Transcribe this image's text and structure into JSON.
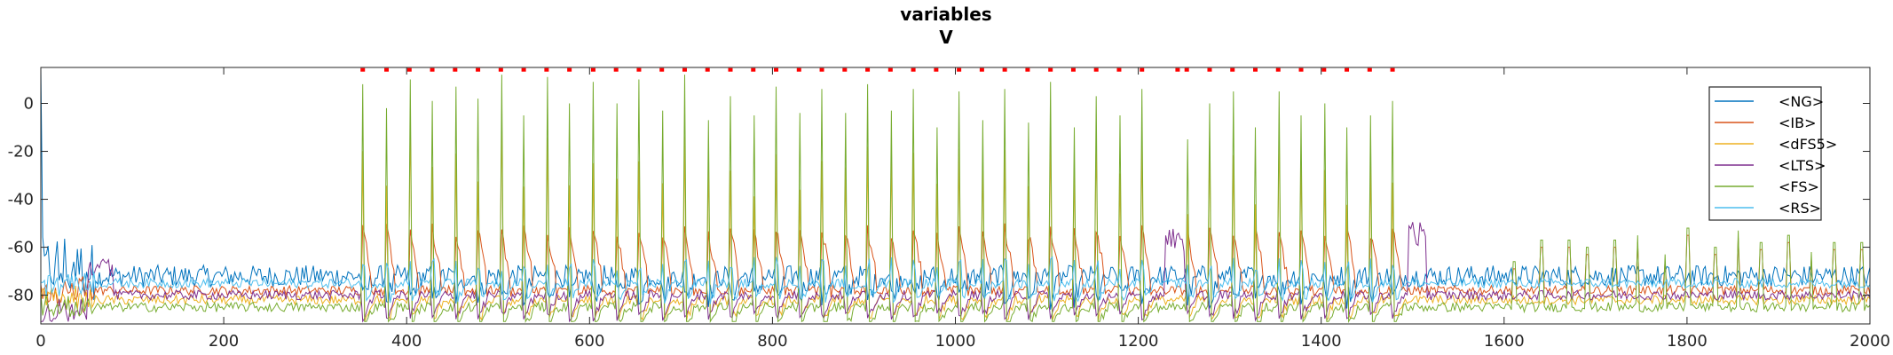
{
  "chart_data": {
    "type": "line",
    "title": "variables",
    "subtitle": "V",
    "xlim": [
      0,
      2000
    ],
    "ylim": [
      -92,
      15
    ],
    "x_ticks": [
      "0",
      "200",
      "400",
      "600",
      "800",
      "1000",
      "1200",
      "1400",
      "1600",
      "1800",
      "2000"
    ],
    "y_ticks": [
      "0",
      "-20",
      "-40",
      "-60",
      "-80"
    ],
    "legend_position": "top-right",
    "grid": false,
    "series": [
      {
        "name": "<NG>",
        "color": "#0072BD",
        "baseline": -72,
        "values_summary": "noisy near -72 mV, large early spike to ~15 at t≈0"
      },
      {
        "name": "<IB>",
        "color": "#D95319",
        "baseline": -78,
        "values_summary": "bursts to ~-45 during stimulus, ~-55 late"
      },
      {
        "name": "<dFS5>",
        "color": "#EDB120",
        "baseline": -82,
        "values_summary": "spikes up to ~12 during stimulus"
      },
      {
        "name": "<LTS>",
        "color": "#7E2F8E",
        "baseline": -80,
        "values_summary": "bumps to ~-50 at t≈1235 and t≈1505"
      },
      {
        "name": "<FS>",
        "color": "#77AC30",
        "baseline": -85,
        "values_summary": "periodic spikes to ~0..10 between t≈350 and t≈1480"
      },
      {
        "name": "<RS>",
        "color": "#4DBEEE",
        "baseline": -75,
        "values_summary": "periodic spikes to ~-65"
      }
    ],
    "spike_times": [
      352,
      378,
      403,
      428,
      453,
      478,
      503,
      528,
      553,
      578,
      604,
      629,
      654,
      679,
      704,
      729,
      754,
      779,
      804,
      829,
      854,
      879,
      904,
      929,
      954,
      979,
      1004,
      1029,
      1054,
      1079,
      1104,
      1129,
      1154,
      1179,
      1204,
      1253,
      1278,
      1303,
      1328,
      1353,
      1378,
      1403,
      1428,
      1453,
      1478
    ],
    "spike_peaks": [
      8,
      -2,
      10,
      1,
      7,
      2,
      12,
      -5,
      11,
      0,
      9,
      0,
      10,
      -3,
      12,
      -7,
      3,
      -5,
      7,
      -4,
      6,
      -4,
      8,
      -3,
      6,
      -10,
      5,
      -7,
      6,
      -8,
      9,
      -10,
      3,
      -5,
      6,
      -15,
      0,
      5,
      -10,
      5,
      -5,
      0,
      -10,
      -5,
      1
    ],
    "late_spike_times": [
      1610,
      1640,
      1670,
      1690,
      1720,
      1745,
      1775,
      1800,
      1830,
      1855,
      1880,
      1910,
      1935,
      1960,
      1990
    ],
    "late_spike_peaks": [
      -66,
      -57,
      -57,
      -60,
      -57,
      -55,
      -63,
      -52,
      -60,
      -53,
      -58,
      -55,
      -62,
      -58,
      -58
    ],
    "event_markers": {
      "color": "#FF0000",
      "y": 14,
      "x": [
        352,
        378,
        403,
        428,
        453,
        478,
        503,
        528,
        553,
        578,
        604,
        629,
        654,
        679,
        704,
        729,
        754,
        779,
        804,
        829,
        854,
        879,
        904,
        929,
        954,
        979,
        1004,
        1029,
        1054,
        1079,
        1104,
        1129,
        1154,
        1179,
        1204,
        1243,
        1253,
        1278,
        1303,
        1328,
        1353,
        1378,
        1403,
        1428,
        1453,
        1478
      ]
    }
  }
}
